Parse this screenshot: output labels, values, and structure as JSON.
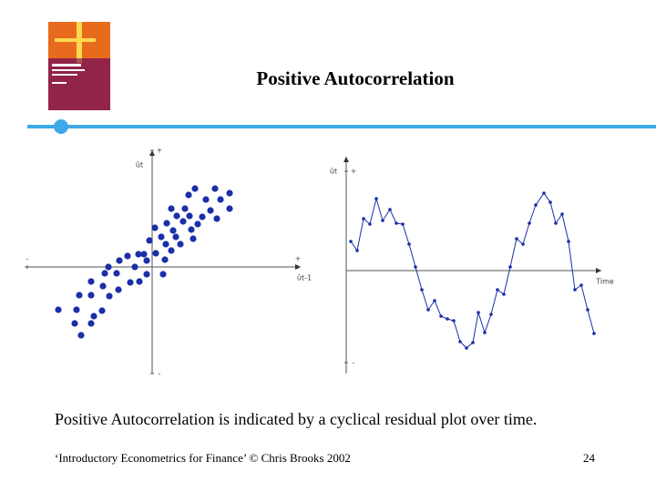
{
  "slide": {
    "title": "Positive Autocorrelation",
    "caption": "Positive Autocorrelation is indicated by a cyclical residual plot over time.",
    "footer": "‘Introductory Econometrics for Finance’ © Chris Brooks 2002",
    "page_number": "24"
  },
  "chart_data": [
    {
      "type": "scatter",
      "x_label": "ût-1",
      "y_label": "ût",
      "color": "#1a2fa8",
      "xlim": [
        -140,
        163
      ],
      "ylim": [
        -117,
        128
      ],
      "xticks": [
        {
          "value": -137,
          "label": "-"
        },
        {
          "value": 160,
          "label": "+"
        }
      ],
      "yticks": [
        {
          "value": 128,
          "label": "+"
        },
        {
          "value": -117,
          "label": "-"
        }
      ],
      "x": [
        47,
        69,
        40,
        85,
        59,
        75,
        21,
        36,
        64,
        85,
        27,
        41,
        55,
        71,
        16,
        34,
        50,
        3,
        23,
        43,
        10,
        26,
        45,
        -3,
        15,
        31,
        4,
        21,
        -15,
        -9,
        -27,
        -36,
        -6,
        14,
        -48,
        -19,
        -52,
        -39,
        -6,
        12,
        -67,
        -24,
        -14,
        -54,
        -37,
        -80,
        -67,
        -47,
        -103,
        -83,
        -55,
        -64,
        -85,
        -67,
        -78
      ],
      "y": [
        86,
        86,
        79,
        81,
        74,
        74,
        64,
        64,
        62,
        64,
        56,
        56,
        55,
        53,
        48,
        50,
        47,
        43,
        40,
        41,
        33,
        33,
        31,
        29,
        25,
        25,
        15,
        18,
        14,
        14,
        12,
        7,
        7,
        8,
        0,
        0,
        -7,
        -7,
        -8,
        -8,
        -16,
        -17,
        -16,
        -21,
        -25,
        -31,
        -31,
        -32,
        -47,
        -47,
        -48,
        -54,
        -62,
        -62,
        -75
      ]
    },
    {
      "type": "line",
      "x_label": "Time",
      "y_label": "ût",
      "color": "#1a2fa8",
      "xlim": [
        0,
        280
      ],
      "ylim": [
        -113,
        125
      ],
      "yticks": [
        {
          "value": 109,
          "label": "+"
        },
        {
          "value": -101,
          "label": "-"
        }
      ],
      "x": [
        5,
        12,
        19,
        26,
        33,
        40,
        48,
        55,
        62,
        69,
        76,
        83,
        90,
        97,
        104,
        111,
        118,
        125,
        132,
        139,
        145,
        152,
        159,
        166,
        173,
        180,
        187,
        194,
        201,
        208,
        217,
        224,
        230,
        237,
        244,
        251,
        258,
        265,
        272
      ],
      "values": [
        32,
        22,
        57,
        51,
        79,
        55,
        67,
        52,
        51,
        29,
        4,
        -21,
        -43,
        -33,
        -50,
        -53,
        -55,
        -78,
        -85,
        -79,
        -46,
        -68,
        -48,
        -21,
        -26,
        4,
        35,
        29,
        52,
        72,
        85,
        75,
        52,
        62,
        32,
        -21,
        -16,
        -43,
        -69
      ]
    }
  ]
}
